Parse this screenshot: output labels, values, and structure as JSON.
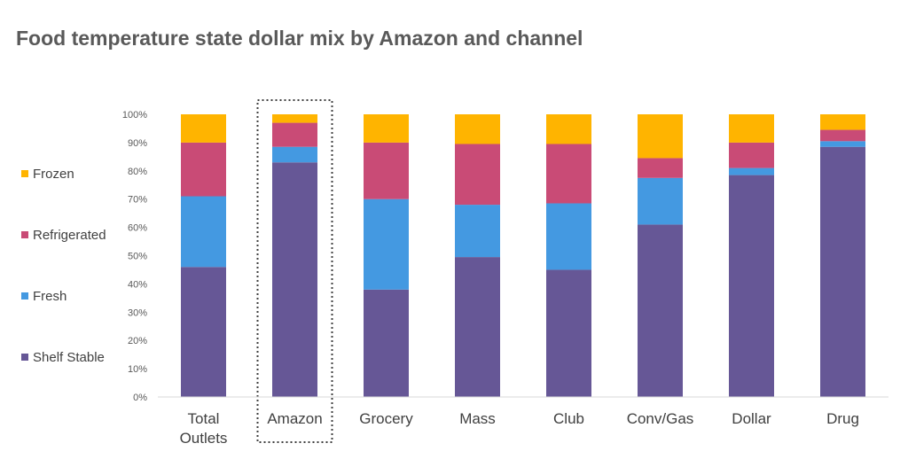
{
  "title": "Food temperature state dollar mix by Amazon and channel",
  "chart_data": {
    "type": "bar",
    "stacked": true,
    "title": "Food temperature state dollar mix by Amazon and channel",
    "categories": [
      "Total Outlets",
      "Amazon",
      "Grocery",
      "Mass",
      "Club",
      "Conv/Gas",
      "Dollar",
      "Drug"
    ],
    "highlighted_category": "Amazon",
    "series": [
      {
        "name": "Shelf Stable",
        "color": "#665796",
        "values": [
          46,
          83,
          38,
          49.5,
          45,
          61,
          78.5,
          88.5
        ]
      },
      {
        "name": "Fresh",
        "color": "#4499e1",
        "values": [
          25,
          5.5,
          32,
          18.5,
          23.5,
          16.5,
          2.5,
          2
        ]
      },
      {
        "name": "Refrigerated",
        "color": "#c94b76",
        "values": [
          19,
          8.5,
          20,
          21.5,
          21,
          7,
          9,
          4
        ]
      },
      {
        "name": "Frozen",
        "color": "#ffb400",
        "values": [
          10,
          3,
          10,
          10.5,
          10.5,
          15.5,
          10,
          5.5
        ]
      }
    ],
    "ylim": [
      0,
      100
    ],
    "y_ticks": [
      "0%",
      "10%",
      "20%",
      "30%",
      "40%",
      "50%",
      "60%",
      "70%",
      "80%",
      "90%",
      "100%"
    ],
    "legend": [
      "Frozen",
      "Refrigerated",
      "Fresh",
      "Shelf Stable"
    ],
    "legend_position": "left",
    "grid": false
  }
}
